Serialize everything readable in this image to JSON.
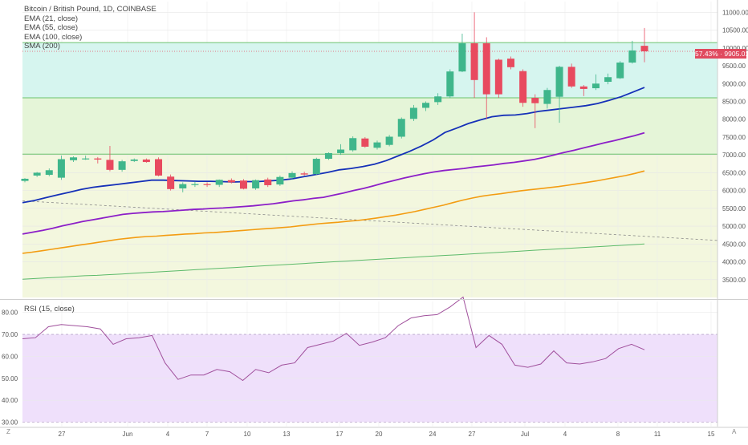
{
  "header": {
    "title": "Bitcoin / British Pound, 1D, COINBASE",
    "indicators": [
      "EMA (21, close)",
      "EMA (55, close)",
      "EMA (100, close)",
      "SMA (200)"
    ]
  },
  "rsi_panel": {
    "label": "RSI (15, close)"
  },
  "price_badge": {
    "pct": "57.43%",
    "price": "9905.01"
  },
  "corner_labels": {
    "left": "Z",
    "right": "A"
  },
  "colors": {
    "bull": "#3fb68b",
    "bear": "#e84a5f",
    "ema21": "#1530b8",
    "ema55": "#8c1fc8",
    "ema100": "#f39c12",
    "sma200": "#5cba6a",
    "rsi": "#a0509c",
    "rsi_band": "#efe0fb",
    "zone_top": "#d6f5ef",
    "zone_mid": "#e5f5d8",
    "zone_low": "#f3f7de"
  },
  "chart_data": [
    {
      "type": "candlestick",
      "title": "Bitcoin / British Pound, 1D, COINBASE",
      "x_ticks": [
        "27",
        "Jun",
        "4",
        "7",
        "10",
        "13",
        "17",
        "20",
        "24",
        "27",
        "Jul",
        "4",
        "8",
        "11",
        "15"
      ],
      "y_ticks": [
        3500,
        4000,
        4500,
        5000,
        5500,
        6000,
        6500,
        7000,
        7500,
        8000,
        8500,
        9000,
        9500,
        10000,
        10500,
        11000
      ],
      "ylim": [
        3000,
        11300
      ],
      "grid": true,
      "zones": [
        {
          "from": 7020,
          "to": 8600,
          "color": "green"
        },
        {
          "from": 8600,
          "to": 10150,
          "color": "teal"
        }
      ],
      "horizontal_lines": [
        10150,
        9905,
        8600,
        7020
      ],
      "trendline": {
        "from": 5710,
        "to": 4600
      },
      "candles": [
        {
          "open": 6270,
          "high": 6350,
          "low": 6230,
          "close": 6330
        },
        {
          "open": 6420,
          "high": 6520,
          "low": 6380,
          "close": 6500
        },
        {
          "open": 6440,
          "high": 6620,
          "low": 6400,
          "close": 6570
        },
        {
          "open": 6360,
          "high": 6980,
          "low": 6300,
          "close": 6880
        },
        {
          "open": 6850,
          "high": 6960,
          "low": 6800,
          "close": 6930
        },
        {
          "open": 6890,
          "high": 6980,
          "low": 6860,
          "close": 6900
        },
        {
          "open": 6900,
          "high": 6940,
          "low": 6760,
          "close": 6870
        },
        {
          "open": 6860,
          "high": 7250,
          "low": 6540,
          "close": 6580
        },
        {
          "open": 6580,
          "high": 6860,
          "low": 6530,
          "close": 6820
        },
        {
          "open": 6830,
          "high": 6900,
          "low": 6800,
          "close": 6870
        },
        {
          "open": 6870,
          "high": 6900,
          "low": 6780,
          "close": 6800
        },
        {
          "open": 6880,
          "high": 6930,
          "low": 6400,
          "close": 6420
        },
        {
          "open": 6390,
          "high": 6450,
          "low": 6000,
          "close": 6040
        },
        {
          "open": 6060,
          "high": 6230,
          "low": 5950,
          "close": 6180
        },
        {
          "open": 6170,
          "high": 6250,
          "low": 6100,
          "close": 6180
        },
        {
          "open": 6180,
          "high": 6230,
          "low": 6100,
          "close": 6170
        },
        {
          "open": 6160,
          "high": 6310,
          "low": 6100,
          "close": 6300
        },
        {
          "open": 6290,
          "high": 6340,
          "low": 6200,
          "close": 6230
        },
        {
          "open": 6280,
          "high": 6320,
          "low": 6030,
          "close": 6050
        },
        {
          "open": 6060,
          "high": 6310,
          "low": 6020,
          "close": 6290
        },
        {
          "open": 6310,
          "high": 6360,
          "low": 6100,
          "close": 6150
        },
        {
          "open": 6170,
          "high": 6420,
          "low": 6130,
          "close": 6380
        },
        {
          "open": 6360,
          "high": 6540,
          "low": 6300,
          "close": 6490
        },
        {
          "open": 6480,
          "high": 6530,
          "low": 6420,
          "close": 6450
        },
        {
          "open": 6460,
          "high": 6920,
          "low": 6440,
          "close": 6890
        },
        {
          "open": 6890,
          "high": 7070,
          "low": 6860,
          "close": 7050
        },
        {
          "open": 7050,
          "high": 7300,
          "low": 7000,
          "close": 7150
        },
        {
          "open": 7130,
          "high": 7520,
          "low": 7090,
          "close": 7470
        },
        {
          "open": 7460,
          "high": 7500,
          "low": 7200,
          "close": 7230
        },
        {
          "open": 7200,
          "high": 7400,
          "low": 7150,
          "close": 7350
        },
        {
          "open": 7280,
          "high": 7560,
          "low": 7240,
          "close": 7510
        },
        {
          "open": 7510,
          "high": 8050,
          "low": 7460,
          "close": 8010
        },
        {
          "open": 8010,
          "high": 8400,
          "low": 7950,
          "close": 8320
        },
        {
          "open": 8320,
          "high": 8500,
          "low": 8230,
          "close": 8460
        },
        {
          "open": 8480,
          "high": 8730,
          "low": 8400,
          "close": 8640
        },
        {
          "open": 8640,
          "high": 9400,
          "low": 8590,
          "close": 9340
        },
        {
          "open": 9340,
          "high": 10400,
          "low": 9320,
          "close": 10130
        },
        {
          "open": 10130,
          "high": 11000,
          "low": 8600,
          "close": 9100
        },
        {
          "open": 10130,
          "high": 10300,
          "low": 8000,
          "close": 8700
        },
        {
          "open": 9670,
          "high": 9700,
          "low": 8600,
          "close": 8700
        },
        {
          "open": 9700,
          "high": 9760,
          "low": 9400,
          "close": 9460
        },
        {
          "open": 9350,
          "high": 9400,
          "low": 8350,
          "close": 8460
        },
        {
          "open": 8600,
          "high": 8700,
          "low": 7750,
          "close": 8450
        },
        {
          "open": 8430,
          "high": 8880,
          "low": 8300,
          "close": 8820
        },
        {
          "open": 8630,
          "high": 9500,
          "low": 7900,
          "close": 9470
        },
        {
          "open": 9470,
          "high": 9560,
          "low": 8880,
          "close": 8920
        },
        {
          "open": 8920,
          "high": 8960,
          "low": 8650,
          "close": 8850
        },
        {
          "open": 8870,
          "high": 9260,
          "low": 8820,
          "close": 9000
        },
        {
          "open": 9050,
          "high": 9280,
          "low": 8980,
          "close": 9180
        },
        {
          "open": 9150,
          "high": 9630,
          "low": 9130,
          "close": 9590
        },
        {
          "open": 9590,
          "high": 10200,
          "low": 9560,
          "close": 9930
        },
        {
          "open": 10060,
          "high": 10560,
          "low": 9600,
          "close": 9905
        }
      ],
      "series": [
        {
          "name": "EMA (21, close)",
          "values": [
            5660,
            5720,
            5800,
            5880,
            5950,
            6030,
            6090,
            6130,
            6170,
            6210,
            6250,
            6290,
            6290,
            6280,
            6270,
            6260,
            6260,
            6250,
            6240,
            6250,
            6250,
            6270,
            6290,
            6330,
            6390,
            6450,
            6510,
            6580,
            6620,
            6670,
            6740,
            6840,
            6970,
            7100,
            7250,
            7420,
            7630,
            7750,
            7880,
            7980,
            8070,
            8110,
            8120,
            8160,
            8220,
            8260,
            8300,
            8340,
            8380,
            8440,
            8530,
            8630,
            8760,
            8890
          ]
        },
        {
          "name": "EMA (55, close)",
          "values": [
            4780,
            4830,
            4880,
            4940,
            5010,
            5070,
            5130,
            5180,
            5230,
            5280,
            5330,
            5360,
            5380,
            5400,
            5410,
            5430,
            5450,
            5470,
            5480,
            5500,
            5510,
            5530,
            5550,
            5570,
            5600,
            5630,
            5670,
            5710,
            5740,
            5780,
            5810,
            5870,
            5930,
            6000,
            6060,
            6130,
            6210,
            6280,
            6350,
            6410,
            6470,
            6520,
            6560,
            6590,
            6620,
            6660,
            6690,
            6720,
            6760,
            6790,
            6830,
            6870,
            6930,
            7000,
            7070,
            7130,
            7200,
            7270,
            7340,
            7400,
            7470,
            7540,
            7620
          ]
        },
        {
          "name": "EMA (100, close)",
          "values": [
            4240,
            4270,
            4310,
            4350,
            4390,
            4430,
            4470,
            4510,
            4550,
            4590,
            4630,
            4660,
            4690,
            4710,
            4720,
            4740,
            4760,
            4780,
            4790,
            4810,
            4820,
            4840,
            4860,
            4880,
            4900,
            4920,
            4940,
            4960,
            4980,
            5010,
            5040,
            5070,
            5090,
            5110,
            5140,
            5160,
            5190,
            5230,
            5270,
            5310,
            5360,
            5410,
            5470,
            5530,
            5590,
            5660,
            5730,
            5790,
            5840,
            5880,
            5910,
            5950,
            5990,
            6020,
            6050,
            6080,
            6110,
            6150,
            6190,
            6230,
            6270,
            6320,
            6370,
            6420,
            6480,
            6550
          ]
        },
        {
          "name": "SMA (200)",
          "values": [
            3510,
            3530,
            3550,
            3570,
            3590,
            3610,
            3620,
            3640,
            3660,
            3680,
            3700,
            3720,
            3740,
            3760,
            3780,
            3800,
            3820,
            3840,
            3860,
            3880,
            3900,
            3920,
            3940,
            3960,
            3980,
            4000,
            4020,
            4040,
            4060,
            4080,
            4100,
            4120,
            4140,
            4160,
            4180,
            4200,
            4220,
            4240,
            4260,
            4280,
            4300,
            4320,
            4340,
            4360,
            4380,
            4400,
            4420,
            4440,
            4460,
            4480,
            4500
          ]
        }
      ]
    },
    {
      "type": "line",
      "title": "RSI (15, close)",
      "y_ticks": [
        30,
        40,
        50,
        60,
        70,
        80
      ],
      "ylim": [
        28,
        85
      ],
      "band": [
        30,
        70
      ],
      "grid": true,
      "series": [
        {
          "name": "RSI (15, close)",
          "values": [
            68,
            68.5,
            73.5,
            74.5,
            74,
            73.5,
            72.5,
            65.5,
            68,
            68.5,
            69.5,
            57,
            49.5,
            51.5,
            51.5,
            54,
            53,
            49,
            54,
            52.5,
            56,
            57,
            64,
            65.5,
            67,
            70.5,
            65,
            66.5,
            68.5,
            74,
            77.5,
            78.5,
            79,
            82.5,
            87,
            64,
            69.5,
            65.5,
            56,
            55,
            56.5,
            62.5,
            57,
            56.5,
            57.5,
            59,
            63.5,
            65.5,
            63
          ]
        }
      ]
    }
  ]
}
